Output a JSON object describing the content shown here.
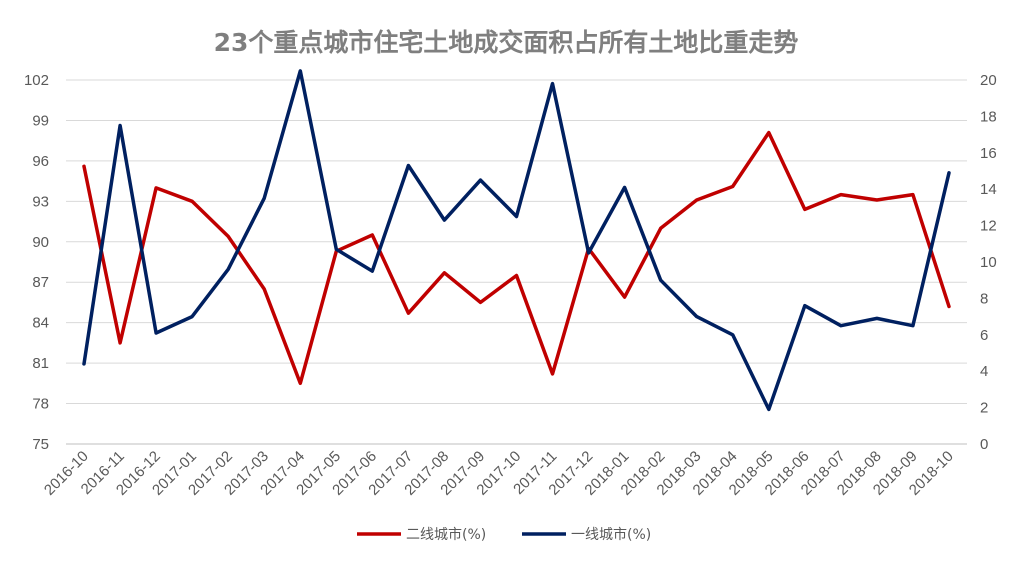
{
  "chart_data": {
    "type": "line",
    "title": "23个重点城市住宅土地成交面积占所有土地比重走势",
    "categories": [
      "2016-10",
      "2016-11",
      "2016-12",
      "2017-01",
      "2017-02",
      "2017-03",
      "2017-04",
      "2017-05",
      "2017-06",
      "2017-07",
      "2017-08",
      "2017-09",
      "2017-10",
      "2017-11",
      "2017-12",
      "2018-01",
      "2018-02",
      "2018-03",
      "2018-04",
      "2018-05",
      "2018-06",
      "2018-07",
      "2018-08",
      "2018-09",
      "2018-10"
    ],
    "y_left": {
      "ticks": [
        75,
        78,
        81,
        84,
        87,
        90,
        93,
        96,
        99,
        102
      ],
      "lim": [
        75,
        102
      ]
    },
    "y_right": {
      "ticks": [
        0,
        2,
        4,
        6,
        8,
        10,
        12,
        14,
        16,
        18,
        20
      ],
      "lim": [
        0,
        20
      ]
    },
    "grid": true,
    "legend_position": "bottom",
    "series": [
      {
        "name": "二线城市(%)",
        "axis": "left",
        "color": "#c00000",
        "values": [
          95.6,
          82.5,
          94.0,
          93.0,
          90.4,
          86.5,
          79.5,
          89.3,
          90.5,
          84.7,
          87.7,
          85.5,
          87.5,
          80.2,
          89.5,
          85.9,
          91.0,
          93.1,
          94.1,
          98.1,
          92.4,
          93.5,
          93.1,
          93.5,
          85.2
        ]
      },
      {
        "name": "一线城市(%)",
        "axis": "right",
        "color": "#002060",
        "values": [
          4.4,
          17.5,
          6.1,
          7.0,
          9.6,
          13.5,
          20.5,
          10.7,
          9.5,
          15.3,
          12.3,
          14.5,
          12.5,
          19.8,
          10.5,
          14.1,
          9.0,
          7.0,
          6.0,
          1.9,
          7.6,
          6.5,
          6.9,
          6.5,
          14.9
        ]
      }
    ]
  }
}
